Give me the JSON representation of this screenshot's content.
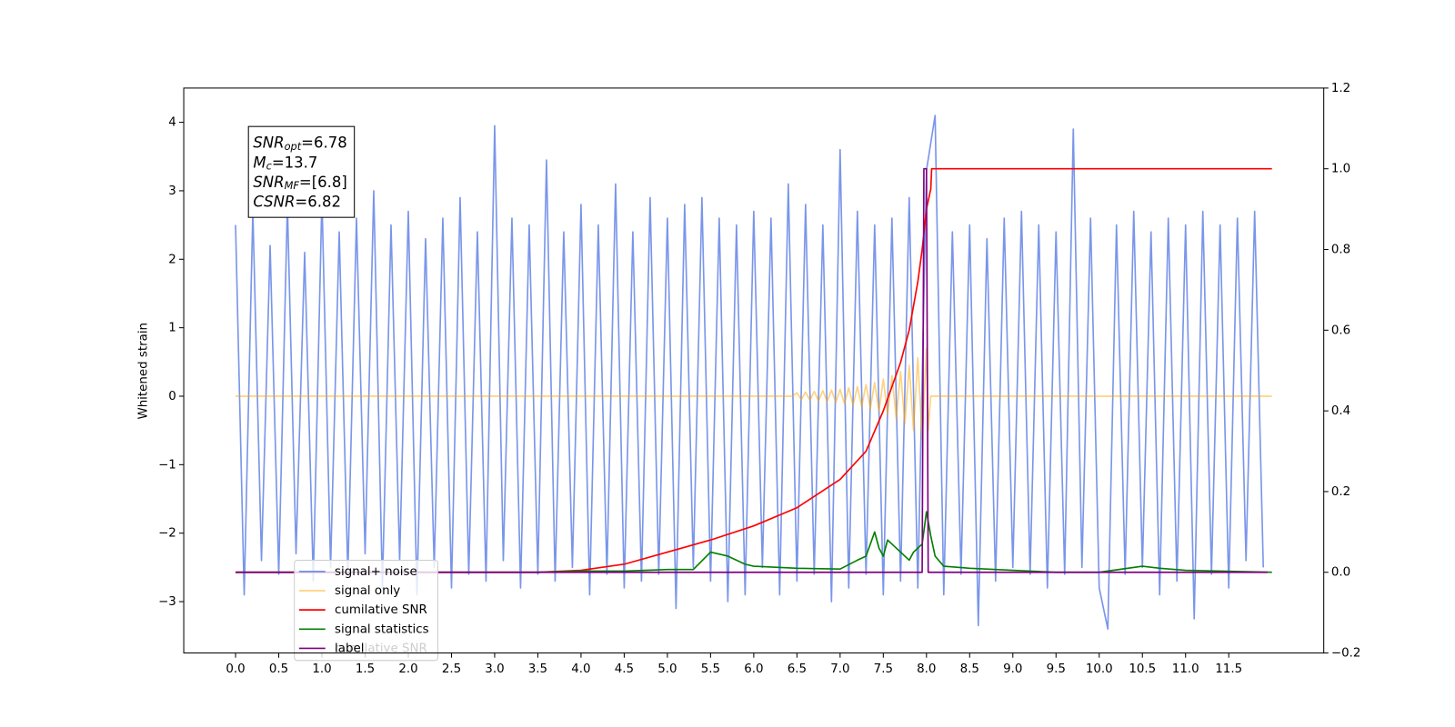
{
  "chart_data": {
    "type": "line",
    "ylabel": "Whitened strain",
    "xlim": [
      -0.6,
      12.6
    ],
    "ylim": [
      -3.75,
      4.5
    ],
    "y2lim": [
      -0.2,
      1.2
    ],
    "xticks": [
      {
        "value": 0,
        "label": "0.0"
      },
      0.5,
      {
        "value": 1,
        "label": "1.0"
      },
      1.5,
      {
        "value": 2,
        "label": "2.0"
      },
      2.5,
      {
        "value": 3,
        "label": "3.0"
      },
      3.5,
      {
        "value": 4,
        "label": "4.0"
      },
      4.5,
      {
        "value": 5,
        "label": "5.0"
      },
      5.5,
      {
        "value": 6,
        "label": "6.0"
      },
      6.5,
      {
        "value": 7,
        "label": "7.0"
      },
      7.5,
      {
        "value": 8,
        "label": "8.0"
      },
      8.5,
      {
        "value": 9,
        "label": "9.0"
      },
      9.5,
      {
        "value": 10,
        "label": "10.0"
      },
      10.5,
      {
        "value": 11,
        "label": "11.0"
      },
      11.5
    ],
    "yticks": [
      {
        "value": -3,
        "label": "−3"
      },
      {
        "value": -2,
        "label": "−2"
      },
      {
        "value": -1,
        "label": "−1"
      },
      0,
      1,
      2,
      3,
      4
    ],
    "y2ticks": [
      {
        "value": -0.2,
        "label": "−0.2"
      },
      {
        "value": 0,
        "label": "0.0"
      },
      0.2,
      0.4,
      0.6,
      0.8,
      {
        "value": 1,
        "label": "1.0"
      },
      1.2
    ],
    "legend_loc": "lower left",
    "legend_ghost_text": "cumilative SNR",
    "stats_box": [
      {
        "name": "SNR",
        "sub": "opt",
        "value": "=6.78"
      },
      {
        "name": "M",
        "sub": "c",
        "value": "=13.7"
      },
      {
        "name": "SNR",
        "sub": "MF",
        "value": "=[6.8]"
      },
      {
        "name": "CSNR",
        "sub": null,
        "value": "=6.82"
      }
    ],
    "series": [
      {
        "name": "signal+ noise",
        "color": "#4169e1",
        "opacity": 0.7,
        "axis": "y",
        "x": [
          0,
          0.1,
          0.2,
          0.3,
          0.4,
          0.5,
          0.6,
          0.7,
          0.8,
          0.9,
          1,
          1.1,
          1.2,
          1.3,
          1.4,
          1.5,
          1.6,
          1.7,
          1.8,
          1.9,
          2,
          2.1,
          2.2,
          2.3,
          2.4,
          2.5,
          2.6,
          2.7,
          2.8,
          2.9,
          3,
          3.1,
          3.2,
          3.3,
          3.4,
          3.5,
          3.6,
          3.7,
          3.8,
          3.9,
          4,
          4.1,
          4.2,
          4.3,
          4.4,
          4.5,
          4.6,
          4.7,
          4.8,
          4.9,
          5,
          5.1,
          5.2,
          5.3,
          5.4,
          5.5,
          5.6,
          5.7,
          5.8,
          5.9,
          6,
          6.1,
          6.2,
          6.3,
          6.4,
          6.5,
          6.6,
          6.7,
          6.8,
          6.9,
          7,
          7.1,
          7.2,
          7.3,
          7.4,
          7.5,
          7.6,
          7.7,
          7.8,
          7.9,
          8,
          8.1,
          8.2,
          8.3,
          8.4,
          8.5,
          8.6,
          8.7,
          8.8,
          8.9,
          9,
          9.1,
          9.2,
          9.3,
          9.4,
          9.5,
          9.6,
          9.7,
          9.8,
          9.9,
          10,
          10.1,
          10.2,
          10.3,
          10.4,
          10.5,
          10.6,
          10.7,
          10.8,
          10.9,
          11,
          11.1,
          11.2,
          11.3,
          11.4,
          11.5,
          11.6,
          11.7,
          11.8,
          11.9
        ],
        "values": [
          2.5,
          -2.9,
          2.7,
          -2.4,
          2.2,
          -2.6,
          2.8,
          -2.3,
          2.1,
          -2.7,
          2.9,
          -2.5,
          2.4,
          -2.6,
          2.6,
          -2.3,
          3.0,
          -2.8,
          2.5,
          -2.4,
          2.7,
          -2.9,
          2.3,
          -2.5,
          2.6,
          -2.8,
          2.9,
          -2.6,
          2.4,
          -2.7,
          3.95,
          -2.4,
          2.6,
          -2.8,
          2.5,
          -2.6,
          3.45,
          -2.7,
          2.4,
          -2.5,
          2.8,
          -2.9,
          2.5,
          -2.6,
          3.1,
          -2.8,
          2.4,
          -2.7,
          2.9,
          -2.6,
          2.6,
          -3.1,
          2.8,
          -2.5,
          2.9,
          -2.7,
          2.6,
          -3.0,
          2.5,
          -2.9,
          2.7,
          -2.5,
          2.6,
          -2.9,
          3.1,
          -2.7,
          2.8,
          -2.6,
          2.5,
          -3.0,
          3.6,
          -2.8,
          2.7,
          -2.6,
          2.5,
          -2.9,
          2.6,
          -2.7,
          2.9,
          -2.8,
          3.3,
          4.1,
          -2.9,
          2.4,
          -2.6,
          2.5,
          -3.35,
          2.3,
          -2.7,
          2.6,
          -2.5,
          2.7,
          -2.6,
          2.5,
          -2.8,
          2.4,
          -2.6,
          3.9,
          -2.5,
          2.6,
          -2.8,
          -3.4,
          2.5,
          -2.6,
          2.7,
          -2.5,
          2.4,
          -2.9,
          2.6,
          -2.7,
          2.5,
          -3.25,
          2.7,
          -2.6,
          2.5,
          -2.8,
          2.6,
          -2.4,
          2.7,
          -2.5
        ]
      },
      {
        "name": "signal only",
        "color": "#ffa500",
        "opacity": 0.5,
        "axis": "y",
        "x": [
          0,
          6.45,
          6.5,
          6.55,
          6.6,
          6.65,
          6.7,
          6.75,
          6.8,
          6.85,
          6.9,
          6.95,
          7,
          7.05,
          7.1,
          7.15,
          7.2,
          7.25,
          7.3,
          7.35,
          7.4,
          7.45,
          7.5,
          7.55,
          7.6,
          7.65,
          7.7,
          7.75,
          7.8,
          7.85,
          7.9,
          7.95,
          8,
          8.02,
          8.05,
          12
        ],
        "values": [
          0,
          0,
          0.05,
          -0.05,
          0.06,
          -0.06,
          0.07,
          -0.07,
          0.08,
          -0.08,
          0.09,
          -0.09,
          0.1,
          -0.11,
          0.12,
          -0.13,
          0.14,
          -0.15,
          0.17,
          -0.18,
          0.2,
          -0.22,
          0.25,
          -0.27,
          0.3,
          -0.33,
          0.36,
          -0.4,
          0.45,
          -0.5,
          0.56,
          -0.63,
          0.7,
          -0.5,
          0,
          0
        ]
      },
      {
        "name": "cumilative SNR",
        "color": "#ff0000",
        "opacity": 1,
        "axis": "y2",
        "x": [
          0,
          3.5,
          4,
          4.5,
          5,
          5.5,
          6,
          6.5,
          7,
          7.3,
          7.5,
          7.7,
          7.8,
          7.9,
          7.95,
          8,
          8.05,
          8.06,
          12
        ],
        "values": [
          0,
          0,
          0.005,
          0.02,
          0.05,
          0.08,
          0.115,
          0.16,
          0.23,
          0.3,
          0.4,
          0.52,
          0.6,
          0.72,
          0.8,
          0.9,
          0.95,
          1,
          1
        ]
      },
      {
        "name": "signal statistics",
        "color": "#008000",
        "opacity": 1,
        "axis": "y2",
        "x": [
          0,
          3.5,
          4,
          4.5,
          5,
          5.3,
          5.5,
          5.7,
          5.9,
          6,
          6.5,
          7,
          7.2,
          7.3,
          7.4,
          7.45,
          7.5,
          7.55,
          7.6,
          7.7,
          7.8,
          7.85,
          7.9,
          7.95,
          8,
          8.05,
          8.1,
          8.2,
          8.5,
          9,
          9.5,
          10,
          10.5,
          10.7,
          11,
          12
        ],
        "values": [
          0,
          0,
          0.003,
          0.003,
          0.007,
          0.007,
          0.05,
          0.04,
          0.02,
          0.015,
          0.01,
          0.008,
          0.03,
          0.04,
          0.1,
          0.06,
          0.04,
          0.08,
          0.07,
          0.05,
          0.03,
          0.05,
          0.06,
          0.07,
          0.15,
          0.09,
          0.04,
          0.015,
          0.01,
          0.005,
          0,
          0,
          0.015,
          0.01,
          0.005,
          0
        ]
      },
      {
        "name": "label",
        "color": "#800080",
        "opacity": 1,
        "axis": "y2",
        "x": [
          0,
          7.95,
          7.97,
          8.0,
          8.02,
          11.95
        ],
        "values": [
          0,
          0,
          1,
          1,
          0,
          0
        ]
      }
    ]
  }
}
